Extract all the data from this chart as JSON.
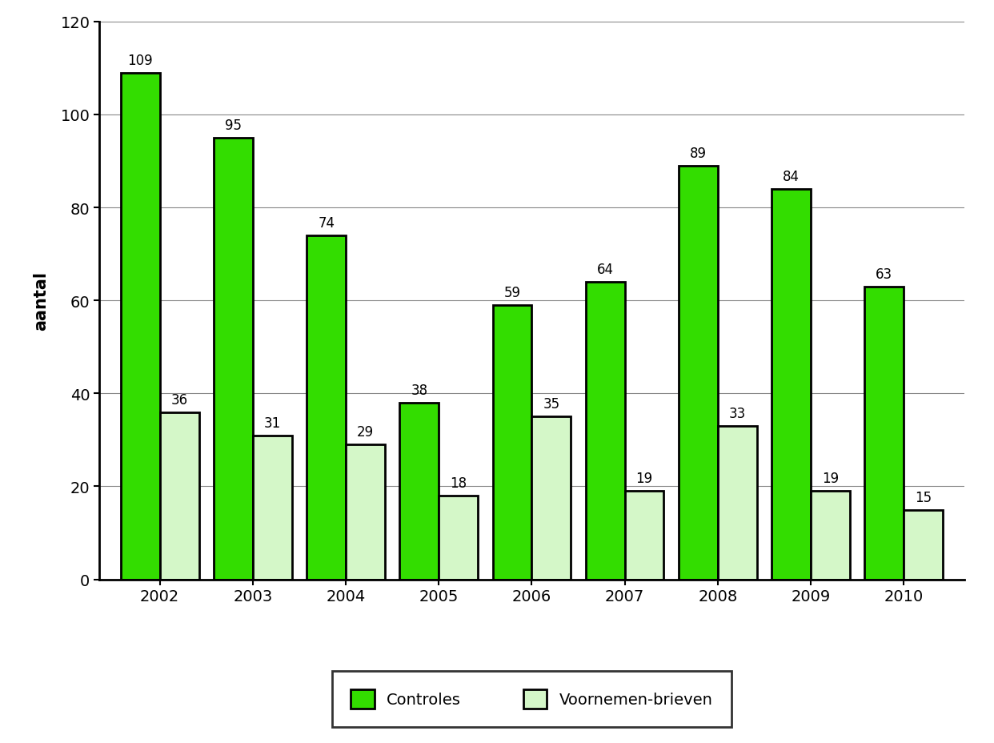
{
  "years": [
    "2002",
    "2003",
    "2004",
    "2005",
    "2006",
    "2007",
    "2008",
    "2009",
    "2010"
  ],
  "controles": [
    109,
    95,
    74,
    38,
    59,
    64,
    89,
    84,
    63
  ],
  "voornemen": [
    36,
    31,
    29,
    18,
    35,
    19,
    33,
    19,
    15
  ],
  "controles_color": "#33dd00",
  "voornemen_color": "#d4f7c8",
  "controles_edge": "#000000",
  "voornemen_edge": "#000000",
  "ylabel": "aantal",
  "ylim": [
    0,
    120
  ],
  "yticks": [
    0,
    20,
    40,
    60,
    80,
    100,
    120
  ],
  "legend_controles": "Controles",
  "legend_voornemen": "Voornemen-brieven",
  "bar_width": 0.42,
  "value_fontsize": 12,
  "legend_fontsize": 14,
  "ylabel_fontsize": 15,
  "tick_fontsize": 14,
  "bar_edge_linewidth": 2.0,
  "background_color": "#ffffff",
  "grid_color": "#888888"
}
